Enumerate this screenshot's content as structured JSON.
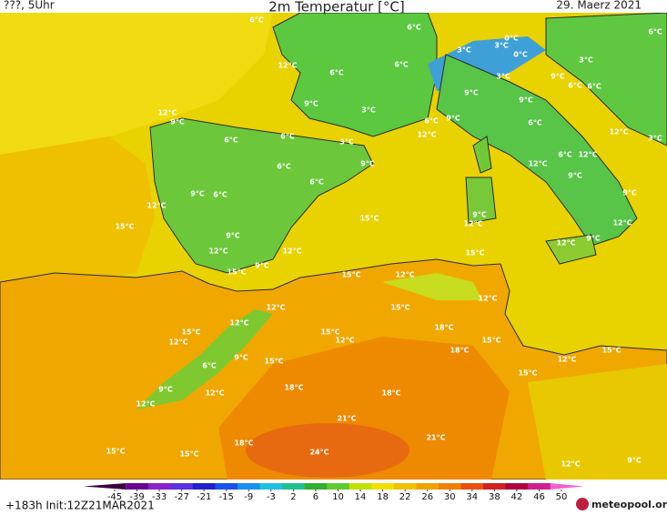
{
  "header": {
    "left": "???, 5Uhr",
    "title": "2m Temperatur [°C]",
    "date": "29. Maerz 2021"
  },
  "temperature_labels": [
    "6°C",
    "6°C",
    "0°C",
    "3°C",
    "3°C",
    "0°C",
    "6°C",
    "12°C",
    "6°C",
    "6°C",
    "3°C",
    "3°C",
    "9°C",
    "6°C",
    "6°C",
    "9°C",
    "9°C",
    "9°C",
    "3°C",
    "12°C",
    "9°C",
    "6°C",
    "9°C",
    "6°C",
    "12°C",
    "12°C",
    "3°C",
    "6°C",
    "6°C",
    "3°C",
    "6°C",
    "9°C",
    "6°C",
    "12°C",
    "12°C",
    "9°C",
    "6°C",
    "9°C",
    "6°C",
    "9°C",
    "12°C",
    "9°C",
    "15°C",
    "12°C",
    "12°C",
    "15°C",
    "9°C",
    "12°C",
    "9°C",
    "12°C",
    "12°C",
    "15°C",
    "15°C",
    "9°C",
    "15°C",
    "12°C",
    "12°C",
    "12°C",
    "15°C",
    "12°C",
    "18°C",
    "15°C",
    "15°C",
    "12°C",
    "12°C",
    "18°C",
    "15°C",
    "15°C",
    "9°C",
    "15°C",
    "12°C",
    "6°C",
    "15°C",
    "9°C",
    "12°C",
    "18°C",
    "18°C",
    "12°C",
    "21°C",
    "21°C",
    "18°C",
    "15°C",
    "15°C",
    "24°C",
    "12°C",
    "9°C"
  ],
  "colorbar": {
    "ticks": [
      -45,
      -39,
      -33,
      -27,
      -21,
      -15,
      -9,
      -3,
      2,
      6,
      10,
      14,
      18,
      22,
      26,
      30,
      34,
      38,
      42,
      46,
      50
    ],
    "colors": [
      "#3a0040",
      "#6a0090",
      "#8a20c8",
      "#5a30e0",
      "#2020d0",
      "#1a50f0",
      "#1890f0",
      "#20c0e0",
      "#20c090",
      "#30b030",
      "#60c830",
      "#c0e000",
      "#f0e000",
      "#f0c000",
      "#f0a000",
      "#f08000",
      "#e85010",
      "#d02020",
      "#b00040",
      "#d02090",
      "#f060d0"
    ]
  },
  "footer": {
    "run": "+183h Init:12Z21MAR2021",
    "logo": "meteopool.org"
  }
}
